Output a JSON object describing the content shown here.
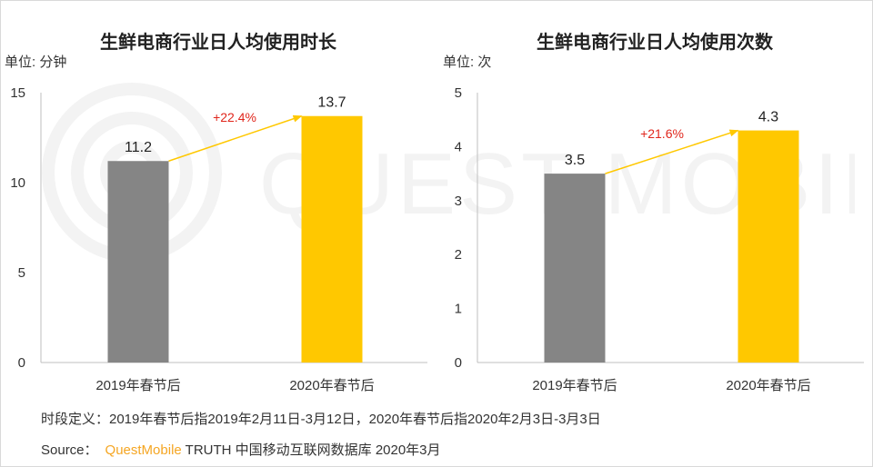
{
  "chart_data": [
    {
      "type": "bar",
      "title": "生鲜电商行业日人均使用时长",
      "ylabel": "单位: 分钟",
      "categories": [
        "2019年春节后",
        "2020年春节后"
      ],
      "values": [
        11.2,
        13.7
      ],
      "value_labels": [
        "11.2",
        "13.7"
      ],
      "colors": [
        "#858585",
        "#ffc800"
      ],
      "ylim": [
        0,
        15
      ],
      "yticks": [
        0,
        5,
        10,
        15
      ],
      "grid": false,
      "annotation": {
        "text": "+22.4%",
        "color": "#e0261c"
      }
    },
    {
      "type": "bar",
      "title": "生鲜电商行业日人均使用次数",
      "ylabel": "单位: 次",
      "categories": [
        "2019年春节后",
        "2020年春节后"
      ],
      "values": [
        3.5,
        4.3
      ],
      "value_labels": [
        "3.5",
        "4.3"
      ],
      "colors": [
        "#858585",
        "#ffc800"
      ],
      "ylim": [
        0,
        5
      ],
      "yticks": [
        0,
        1,
        2,
        3,
        4,
        5
      ],
      "grid": false,
      "annotation": {
        "text": "+21.6%",
        "color": "#e0261c"
      }
    }
  ],
  "watermark": "QUEST MOBILE",
  "footnote": "时段定义：2019年春节后指2019年2月11日-3月12日，2020年春节后指2020年2月3日-3月3日",
  "source": {
    "label": "Source：",
    "brand": "QuestMobile",
    "text": "TRUTH 中国移动互联网数据库 2020年3月"
  },
  "colors": {
    "arrow": "#ffc800",
    "axis": "#bfbfbf",
    "brand": "#f5a623"
  }
}
